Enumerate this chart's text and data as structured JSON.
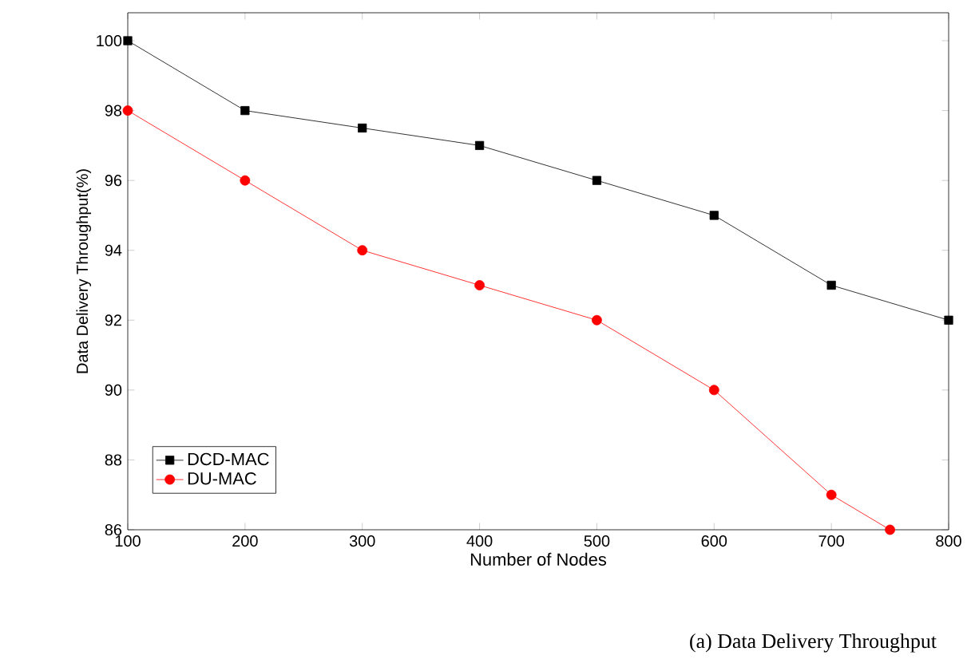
{
  "chart_data": {
    "type": "line",
    "xlabel": "Number of Nodes",
    "ylabel": "Data Delivery Throughput(%)",
    "x": [
      100,
      200,
      300,
      400,
      500,
      600,
      700,
      800
    ],
    "series": [
      {
        "name": "DCD-MAC",
        "color": "#000000",
        "marker": "square",
        "values": [
          100,
          98,
          97.5,
          97,
          96,
          95,
          93,
          92
        ]
      },
      {
        "name": "DU-MAC",
        "color": "#ff0000",
        "marker": "circle",
        "x": [
          100,
          200,
          300,
          400,
          500,
          600,
          700,
          750
        ],
        "values": [
          98,
          96,
          94,
          93,
          92,
          90,
          87,
          86
        ]
      }
    ],
    "xlim": [
      100,
      800
    ],
    "xticks": [
      100,
      200,
      300,
      400,
      500,
      600,
      700,
      800
    ],
    "ylim": [
      86,
      100.8
    ],
    "yticks": [
      86,
      88,
      90,
      92,
      94,
      96,
      98,
      100
    ],
    "grid": false,
    "legend": "bottom left",
    "line_style": "solid",
    "annotations": [
      "(a) Data Delivery Throughput"
    ]
  }
}
